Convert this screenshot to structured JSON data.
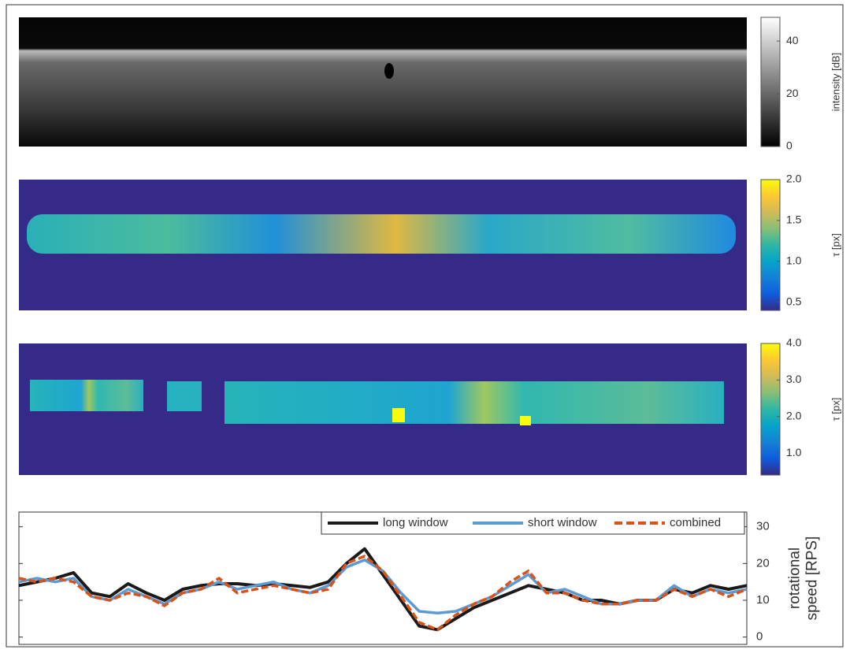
{
  "chart_data": [
    {
      "type": "image",
      "colormap": "gray",
      "colorbar_label": "intensity [dB]",
      "clim": [
        0,
        49
      ],
      "cticks": [
        0,
        20,
        40
      ]
    },
    {
      "type": "image",
      "colormap": "parula",
      "colorbar_label": "τ [px]",
      "clim": [
        0.4,
        2.0
      ],
      "cticks": [
        {
          "value": 0.5,
          "label": "0.5"
        },
        {
          "value": 1.0,
          "label": "1.0"
        },
        {
          "value": 1.5,
          "label": "1.5"
        },
        {
          "value": 2.0,
          "label": "2.0"
        }
      ]
    },
    {
      "type": "image",
      "colormap": "parula",
      "colorbar_label": "τ [px]",
      "clim": [
        0.4,
        4.0
      ],
      "cticks": [
        {
          "value": 1.0,
          "label": "1.0"
        },
        {
          "value": 2.0,
          "label": "2.0"
        },
        {
          "value": 3.0,
          "label": "3.0"
        },
        {
          "value": 4.0,
          "label": "4.0"
        }
      ]
    },
    {
      "type": "line",
      "y_label": "rotational speed [RPS]",
      "ylim": [
        -2,
        34
      ],
      "yticks": [
        0,
        10,
        20,
        30
      ],
      "categories": [
        null,
        null,
        null,
        null,
        null,
        null,
        null,
        null,
        null,
        null,
        null,
        null,
        null,
        null,
        null,
        null,
        null,
        null,
        null,
        null,
        null,
        null,
        null,
        null,
        null,
        null,
        null,
        null,
        null,
        null,
        null,
        null,
        null,
        null,
        null,
        null,
        null,
        null,
        null,
        null,
        null
      ],
      "series": [
        {
          "name": "long window",
          "color": "#1a1a1a",
          "values": [
            14,
            15,
            16,
            17.5,
            12,
            11,
            14.5,
            12,
            10,
            13,
            14,
            14.5,
            14.5,
            14,
            14.5,
            14,
            13.5,
            15,
            20,
            24,
            17,
            10,
            3,
            2,
            5,
            8,
            10,
            12,
            14,
            13,
            12,
            10,
            10,
            9,
            10,
            10,
            13,
            12,
            14,
            13,
            14
          ]
        },
        {
          "name": "short window",
          "color": "#5b9bd5",
          "values": [
            15,
            16,
            15,
            16,
            11,
            10,
            13,
            11,
            9,
            12,
            13,
            15,
            13,
            14,
            15,
            13,
            12,
            14,
            19,
            21,
            18,
            12,
            7,
            6.5,
            7,
            9,
            11,
            14,
            17,
            12,
            13,
            11,
            9,
            9,
            10,
            10,
            14,
            11,
            13,
            12,
            13
          ]
        },
        {
          "name": "combined",
          "color": "#d95319",
          "dashed": true,
          "values": [
            16,
            15,
            16,
            15,
            11,
            10,
            12,
            11,
            8.5,
            12,
            13,
            16,
            12,
            13,
            14,
            13,
            12,
            13,
            20,
            22,
            18,
            11,
            4,
            2,
            6,
            9,
            11,
            15,
            18,
            12,
            12,
            10,
            9,
            9,
            10,
            10,
            13,
            11,
            13,
            11,
            13
          ]
        }
      ]
    }
  ]
}
